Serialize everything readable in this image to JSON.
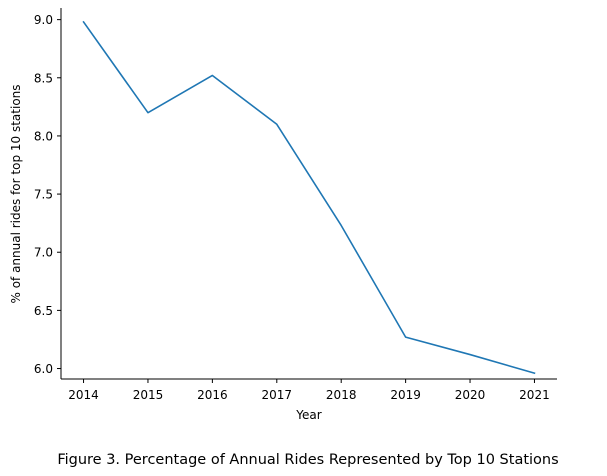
{
  "caption": "Figure 3. Percentage of Annual Rides Represented by Top 10 Stations",
  "chart_data": {
    "type": "line",
    "title": "",
    "xlabel": "Year",
    "ylabel": "% of annual rides for top 10 stations",
    "x": [
      2014,
      2015,
      2016,
      2017,
      2018,
      2019,
      2020,
      2021
    ],
    "series": [
      {
        "values": [
          8.98,
          8.2,
          8.52,
          8.1,
          7.23,
          6.27,
          6.12,
          5.96
        ],
        "color": "#1f77b4"
      }
    ],
    "xticks": [
      "2014",
      "2015",
      "2016",
      "2017",
      "2018",
      "2019",
      "2020",
      "2021"
    ],
    "yticks": [
      "6.0",
      "6.5",
      "7.0",
      "7.5",
      "8.0",
      "8.5",
      "9.0"
    ],
    "xlim": [
      2013.65,
      2021.35
    ],
    "ylim": [
      5.91,
      9.1
    ],
    "grid": false,
    "legend": "none",
    "spines": [
      "left",
      "bottom"
    ]
  }
}
